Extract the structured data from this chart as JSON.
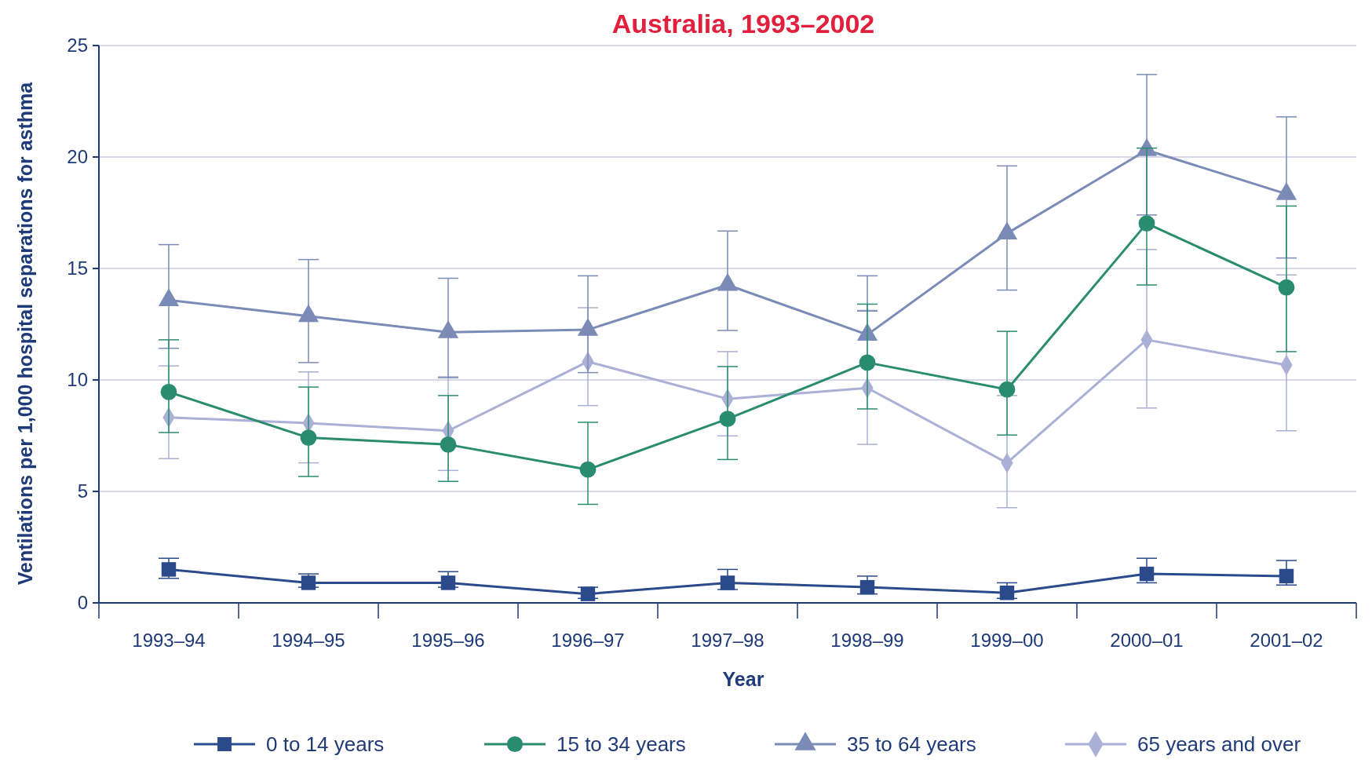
{
  "chart_data": {
    "type": "line",
    "title": "Australia, 1993–2002",
    "xlabel": "Year",
    "ylabel": "Ventilations per 1,000 hospital separations for asthma",
    "categories": [
      "1993–94",
      "1994–95",
      "1995–96",
      "1996–97",
      "1997–98",
      "1998–99",
      "1999–00",
      "2000–01",
      "2001–02"
    ],
    "ylim": [
      0,
      25
    ],
    "yticks": [
      0,
      5,
      10,
      15,
      20,
      25
    ],
    "grid": "y",
    "legend": "bottom",
    "series": [
      {
        "name": "0 to 14 years",
        "color": "#2b4a8c",
        "marker": "square",
        "values": [
          1.5,
          0.9,
          0.9,
          0.4,
          0.9,
          0.7,
          0.45,
          1.3,
          1.2
        ],
        "errors": [
          [
            1.1,
            2.0
          ],
          [
            0.7,
            1.3
          ],
          [
            0.7,
            1.4
          ],
          [
            0.2,
            0.7
          ],
          [
            0.6,
            1.5
          ],
          [
            0.4,
            1.2
          ],
          [
            0.2,
            0.9
          ],
          [
            0.9,
            2.0
          ],
          [
            0.8,
            1.9
          ]
        ]
      },
      {
        "name": "15 to 34 years",
        "color": "#2a8c6e",
        "marker": "circle",
        "values": [
          9.46,
          7.41,
          7.1,
          5.98,
          8.25,
          10.78,
          9.57,
          17.02,
          14.15
        ],
        "errors": [
          [
            7.64,
            11.8
          ],
          [
            5.67,
            9.68
          ],
          [
            5.45,
            9.3
          ],
          [
            4.42,
            8.1
          ],
          [
            6.43,
            10.6
          ],
          [
            8.7,
            13.4
          ],
          [
            7.53,
            12.18
          ],
          [
            14.26,
            20.4
          ],
          [
            11.27,
            17.8
          ]
        ]
      },
      {
        "name": "35 to 64 years",
        "color": "#7a8bb8",
        "marker": "triangle",
        "values": [
          13.58,
          12.86,
          12.14,
          12.25,
          14.26,
          12.03,
          16.57,
          20.31,
          18.34
        ],
        "errors": [
          [
            11.42,
            16.07
          ],
          [
            10.78,
            15.4
          ],
          [
            10.1,
            14.56
          ],
          [
            10.33,
            14.67
          ],
          [
            12.22,
            16.68
          ],
          [
            13.09,
            14.67
          ],
          [
            14.03,
            19.6
          ],
          [
            17.4,
            23.7
          ],
          [
            15.47,
            21.8
          ]
        ]
      },
      {
        "name": "65 years and over",
        "color": "#aab0d6",
        "marker": "diamond",
        "values": [
          8.32,
          8.06,
          7.72,
          10.82,
          9.15,
          9.64,
          6.28,
          11.8,
          10.67
        ],
        "errors": [
          [
            6.47,
            10.63
          ],
          [
            6.28,
            10.36
          ],
          [
            5.94,
            10.14
          ],
          [
            8.85,
            13.24
          ],
          [
            7.49,
            11.27
          ],
          [
            7.11,
            13.12
          ],
          [
            4.27,
            9.3
          ],
          [
            8.74,
            15.85
          ],
          [
            7.72,
            14.71
          ]
        ]
      }
    ]
  }
}
